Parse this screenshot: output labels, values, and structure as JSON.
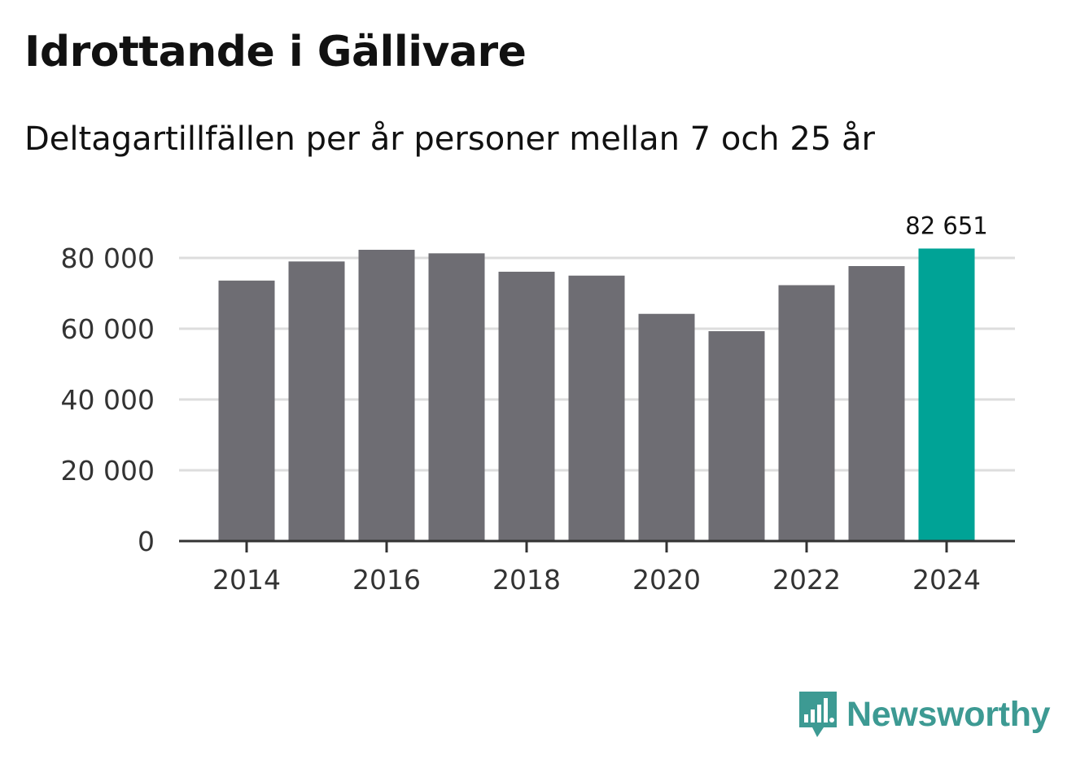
{
  "title": "Idrottande i Gällivare",
  "subtitle": "Deltagartillfällen per år personer mellan 7 och 25 år",
  "brand": {
    "name": "Newsworthy",
    "color": "#3d9a93",
    "icon": "newsworthy-logo-icon"
  },
  "colors": {
    "bar": "#6e6d73",
    "highlight": "#00a396",
    "grid": "#dddddd",
    "axis": "#333333"
  },
  "chart_data": {
    "type": "bar",
    "categories": [
      "2014",
      "2015",
      "2016",
      "2017",
      "2018",
      "2019",
      "2020",
      "2021",
      "2022",
      "2023",
      "2024"
    ],
    "values": [
      73600,
      79000,
      82300,
      81300,
      76100,
      75000,
      64200,
      59300,
      72300,
      77700,
      82651
    ],
    "highlight_index": 10,
    "data_labels": [
      {
        "index": 10,
        "text": "82 651"
      }
    ],
    "ylim": [
      0,
      80000
    ],
    "yticks": [
      0,
      20000,
      40000,
      60000,
      80000
    ],
    "ytick_labels": [
      "0",
      "20 000",
      "40 000",
      "60 000",
      "80 000"
    ],
    "xtick_labels": [
      "2014",
      "2016",
      "2018",
      "2020",
      "2022",
      "2024"
    ],
    "grid": true,
    "legend": "none",
    "xlabel": "",
    "ylabel": ""
  }
}
